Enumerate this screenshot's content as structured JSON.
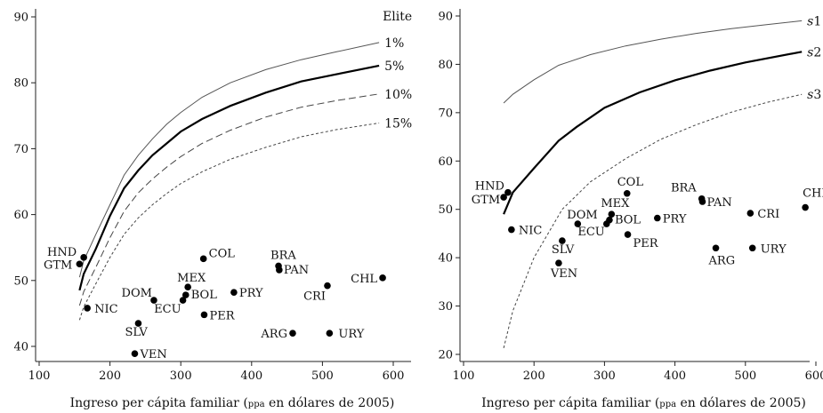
{
  "chart_data": [
    {
      "type": "scatter",
      "panel": "left",
      "legend_title": "Elite",
      "xlabel_main": "Ingreso per cápita familiar (",
      "xlabel_small": "ppa",
      "xlabel_end": " en dólares de 2005)",
      "xlim": [
        90,
        600
      ],
      "ylim": [
        38,
        92
      ],
      "xticks": [
        100,
        200,
        300,
        400,
        500,
        600
      ],
      "yticks": [
        40,
        50,
        60,
        70,
        80,
        90
      ],
      "points": [
        {
          "label": "HND",
          "x": 163,
          "y": 53.5
        },
        {
          "label": "GTM",
          "x": 157,
          "y": 52.5
        },
        {
          "label": "NIC",
          "x": 168,
          "y": 45.8
        },
        {
          "label": "SLV",
          "x": 240,
          "y": 43.5
        },
        {
          "label": "VEN",
          "x": 235,
          "y": 38.9
        },
        {
          "label": "DOM",
          "x": 262,
          "y": 47.0
        },
        {
          "label": "MEX",
          "x": 310,
          "y": 49.0
        },
        {
          "label": "BOL",
          "x": 307,
          "y": 47.8
        },
        {
          "label": "ECU",
          "x": 303,
          "y": 47.0
        },
        {
          "label": "COL",
          "x": 332,
          "y": 53.3
        },
        {
          "label": "PER",
          "x": 333,
          "y": 44.8
        },
        {
          "label": "PRY",
          "x": 375,
          "y": 48.2
        },
        {
          "label": "BRA",
          "x": 438,
          "y": 52.2
        },
        {
          "label": "PAN",
          "x": 439,
          "y": 51.6
        },
        {
          "label": "ARG",
          "x": 458,
          "y": 42.0
        },
        {
          "label": "CRI",
          "x": 507,
          "y": 49.2
        },
        {
          "label": "URY",
          "x": 510,
          "y": 42.0
        },
        {
          "label": "CHL",
          "x": 585,
          "y": 50.4
        }
      ],
      "series": [
        {
          "name": "1%",
          "style": "thin-solid",
          "x": [
            157,
            163,
            180,
            200,
            220,
            240,
            260,
            280,
            300,
            330,
            370,
            420,
            470,
            520,
            580
          ],
          "y": [
            50.5,
            53,
            57,
            61.5,
            66,
            69,
            71.5,
            73.7,
            75.5,
            77.8,
            80,
            82,
            83.5,
            84.7,
            86.1
          ]
        },
        {
          "name": "5%",
          "style": "thick-solid",
          "x": [
            157,
            163,
            180,
            200,
            220,
            240,
            260,
            280,
            300,
            330,
            370,
            420,
            470,
            520,
            580
          ],
          "y": [
            48.5,
            51,
            54.8,
            59.8,
            64,
            66.7,
            69,
            70.8,
            72.6,
            74.5,
            76.5,
            78.5,
            80.2,
            81.3,
            82.6
          ]
        },
        {
          "name": "10%",
          "style": "dashed",
          "x": [
            157,
            163,
            180,
            200,
            220,
            240,
            260,
            280,
            300,
            330,
            370,
            420,
            470,
            520,
            580
          ],
          "y": [
            46.2,
            48.3,
            52,
            56.5,
            60.5,
            63.3,
            65.4,
            67.2,
            68.8,
            70.8,
            72.8,
            74.8,
            76.3,
            77.3,
            78.3
          ]
        },
        {
          "name": "15%",
          "style": "dotted",
          "x": [
            157,
            163,
            180,
            200,
            220,
            240,
            260,
            280,
            300,
            330,
            370,
            420,
            470,
            520,
            580
          ],
          "y": [
            44.0,
            46.0,
            49.5,
            53.5,
            57,
            59.5,
            61.5,
            63.2,
            64.7,
            66.5,
            68.4,
            70.2,
            71.8,
            72.9,
            73.9
          ]
        }
      ]
    },
    {
      "type": "scatter",
      "panel": "right",
      "xlabel_main": "Ingreso per cápita familiar (",
      "xlabel_small": "ppa",
      "xlabel_end": " en dólares de 2005)",
      "xlim": [
        90,
        600
      ],
      "ylim": [
        19,
        92
      ],
      "xticks": [
        100,
        200,
        300,
        400,
        500,
        600
      ],
      "yticks": [
        20,
        30,
        40,
        50,
        60,
        70,
        80,
        90
      ],
      "points": [
        {
          "label": "HND",
          "x": 163,
          "y": 53.5
        },
        {
          "label": "GTM",
          "x": 157,
          "y": 52.5
        },
        {
          "label": "NIC",
          "x": 168,
          "y": 45.8
        },
        {
          "label": "SLV",
          "x": 240,
          "y": 43.5
        },
        {
          "label": "VEN",
          "x": 235,
          "y": 38.9
        },
        {
          "label": "DOM",
          "x": 262,
          "y": 47.0
        },
        {
          "label": "MEX",
          "x": 310,
          "y": 49.0
        },
        {
          "label": "BOL",
          "x": 307,
          "y": 47.8
        },
        {
          "label": "ECU",
          "x": 303,
          "y": 47.0
        },
        {
          "label": "COL",
          "x": 332,
          "y": 53.3
        },
        {
          "label": "PER",
          "x": 333,
          "y": 44.8
        },
        {
          "label": "PRY",
          "x": 375,
          "y": 48.2
        },
        {
          "label": "BRA",
          "x": 438,
          "y": 52.2
        },
        {
          "label": "PAN",
          "x": 439,
          "y": 51.6
        },
        {
          "label": "ARG",
          "x": 458,
          "y": 42.0
        },
        {
          "label": "CRI",
          "x": 507,
          "y": 49.2
        },
        {
          "label": "URY",
          "x": 510,
          "y": 42.0
        },
        {
          "label": "CHL",
          "x": 585,
          "y": 50.4
        }
      ],
      "series": [
        {
          "name": "s1",
          "style": "thin-solid",
          "x": [
            157,
            170,
            200,
            235,
            280,
            330,
            380,
            430,
            480,
            530,
            580
          ],
          "y": [
            72,
            73.8,
            76.8,
            79.8,
            82,
            83.8,
            85.2,
            86.4,
            87.4,
            88.2,
            89
          ]
        },
        {
          "name": "s2",
          "style": "thick-solid",
          "x": [
            157,
            170,
            200,
            235,
            260,
            300,
            350,
            400,
            450,
            500,
            580
          ],
          "y": [
            49,
            53.5,
            58.5,
            64.2,
            67,
            71,
            74.2,
            76.7,
            78.7,
            80.4,
            82.6
          ]
        },
        {
          "name": "s3",
          "style": "dotted",
          "x": [
            157,
            170,
            200,
            240,
            280,
            330,
            380,
            430,
            480,
            530,
            580
          ],
          "y": [
            21.3,
            29,
            40,
            50,
            55.7,
            60.5,
            64.5,
            67.5,
            70.1,
            72.1,
            73.8
          ]
        }
      ]
    }
  ]
}
